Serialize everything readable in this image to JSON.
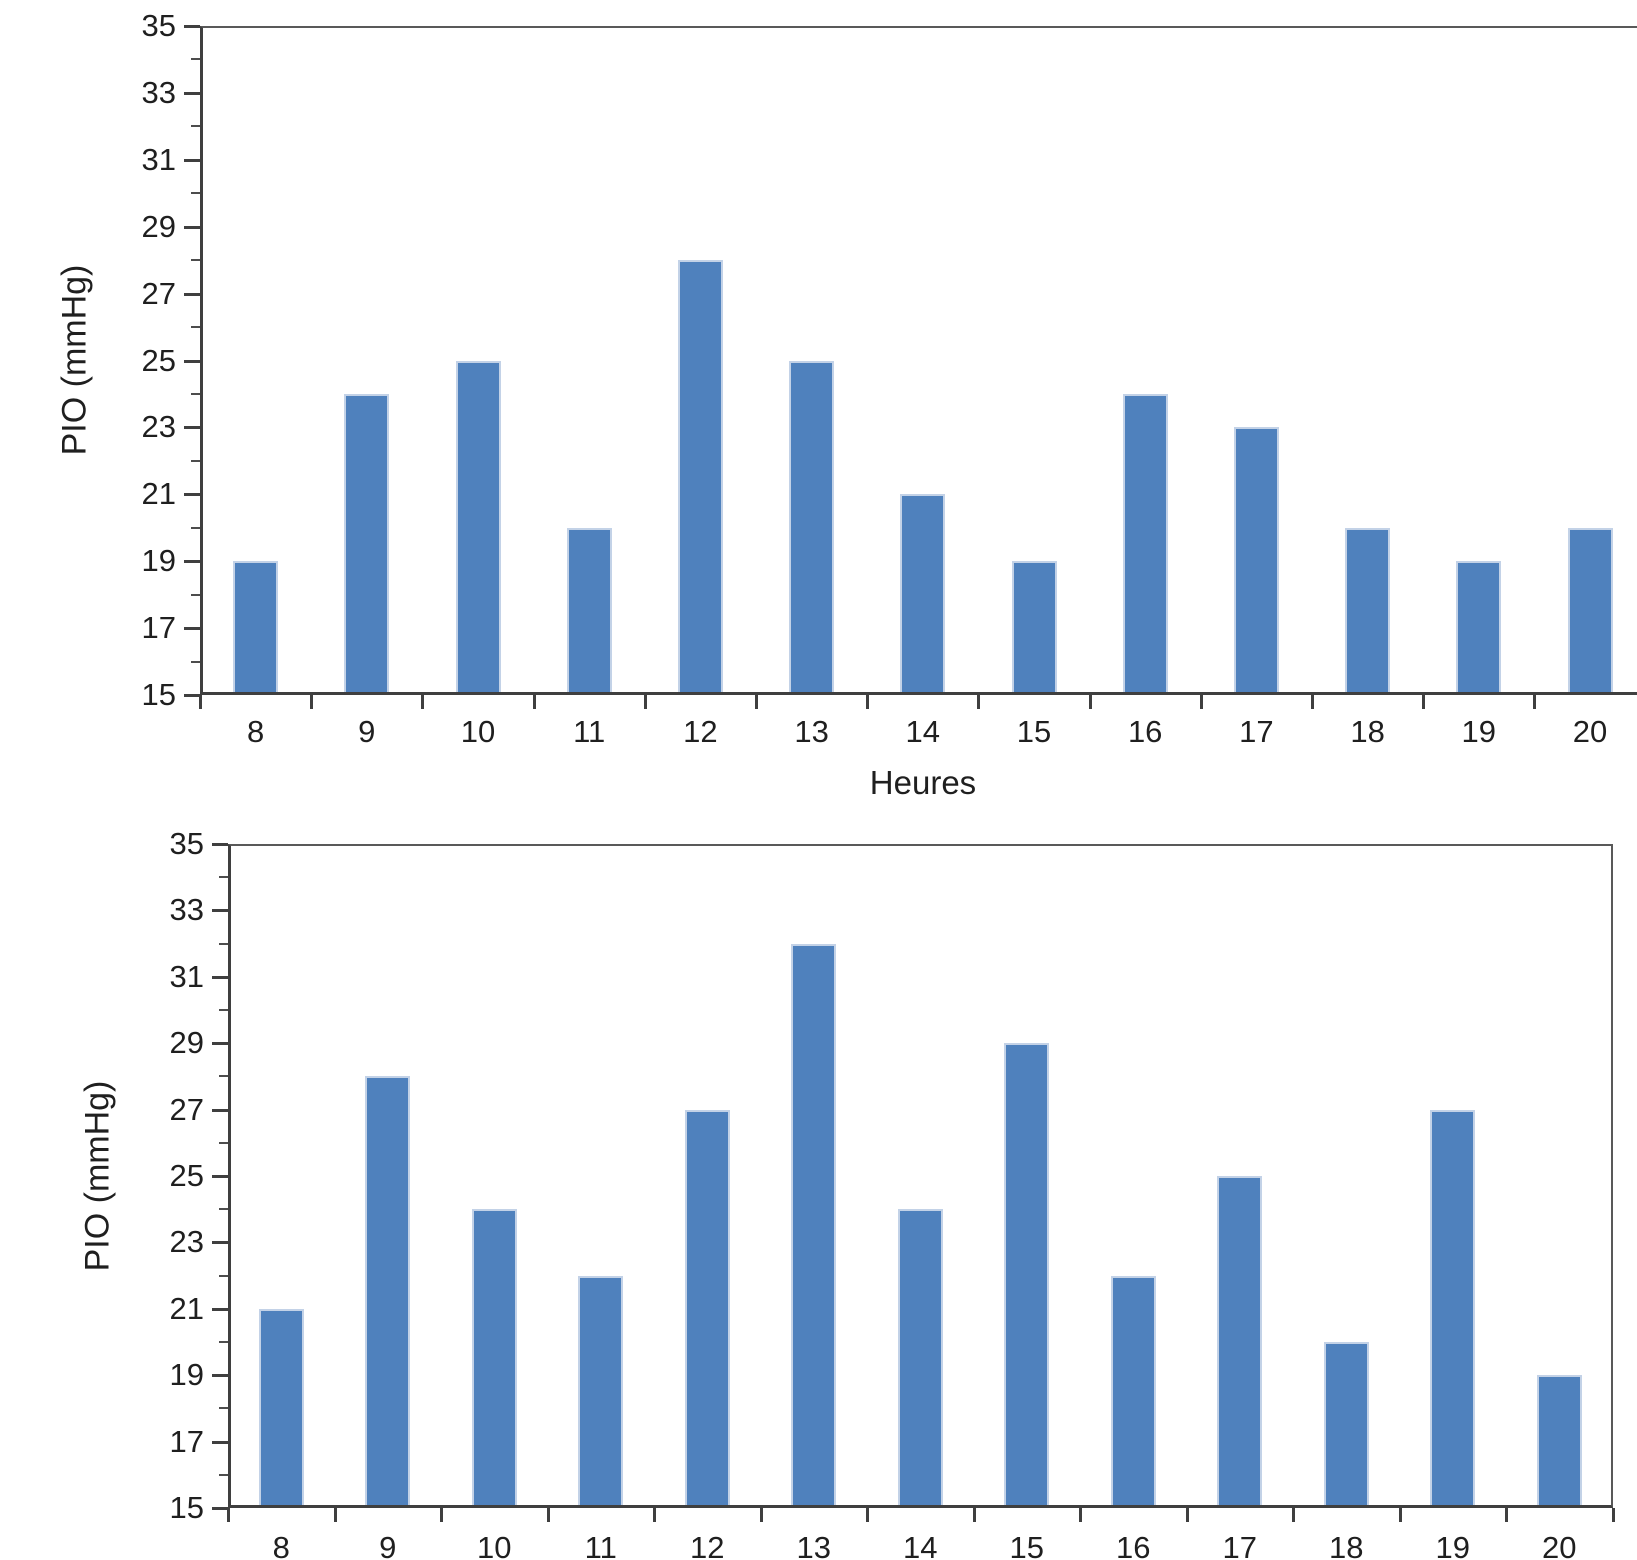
{
  "page": {
    "background": "#ffffff"
  },
  "chart_data": [
    {
      "type": "bar",
      "title": "",
      "xlabel": "Heures",
      "ylabel": "PIO (mmHg)",
      "categories": [
        "8",
        "9",
        "10",
        "11",
        "12",
        "13",
        "14",
        "15",
        "16",
        "17",
        "18",
        "19",
        "20"
      ],
      "values": [
        19,
        24,
        25,
        20,
        28,
        25,
        21,
        19,
        24,
        23,
        20,
        19,
        20
      ],
      "ylim": [
        15,
        35
      ],
      "ytick_step": 2,
      "yminor_step": 1,
      "grid": false,
      "legend": null,
      "bar_color": "#4f81bd",
      "bar_edge_color": "#c3d2e7",
      "axis_color": "#3f3f3f",
      "text_color": "#1f1f1f"
    },
    {
      "type": "bar",
      "title": "",
      "xlabel": "",
      "ylabel": "PIO (mmHg)",
      "categories": [
        "8",
        "9",
        "10",
        "11",
        "12",
        "13",
        "14",
        "15",
        "16",
        "17",
        "18",
        "19",
        "20"
      ],
      "values": [
        21,
        28,
        24,
        22,
        27,
        32,
        24,
        29,
        22,
        25,
        20,
        27,
        19
      ],
      "ylim": [
        15,
        35
      ],
      "ytick_step": 2,
      "yminor_step": 1,
      "grid": false,
      "legend": null,
      "bar_color": "#4f81bd",
      "bar_edge_color": "#c3d2e7",
      "axis_color": "#3f3f3f",
      "text_color": "#1f1f1f"
    }
  ]
}
